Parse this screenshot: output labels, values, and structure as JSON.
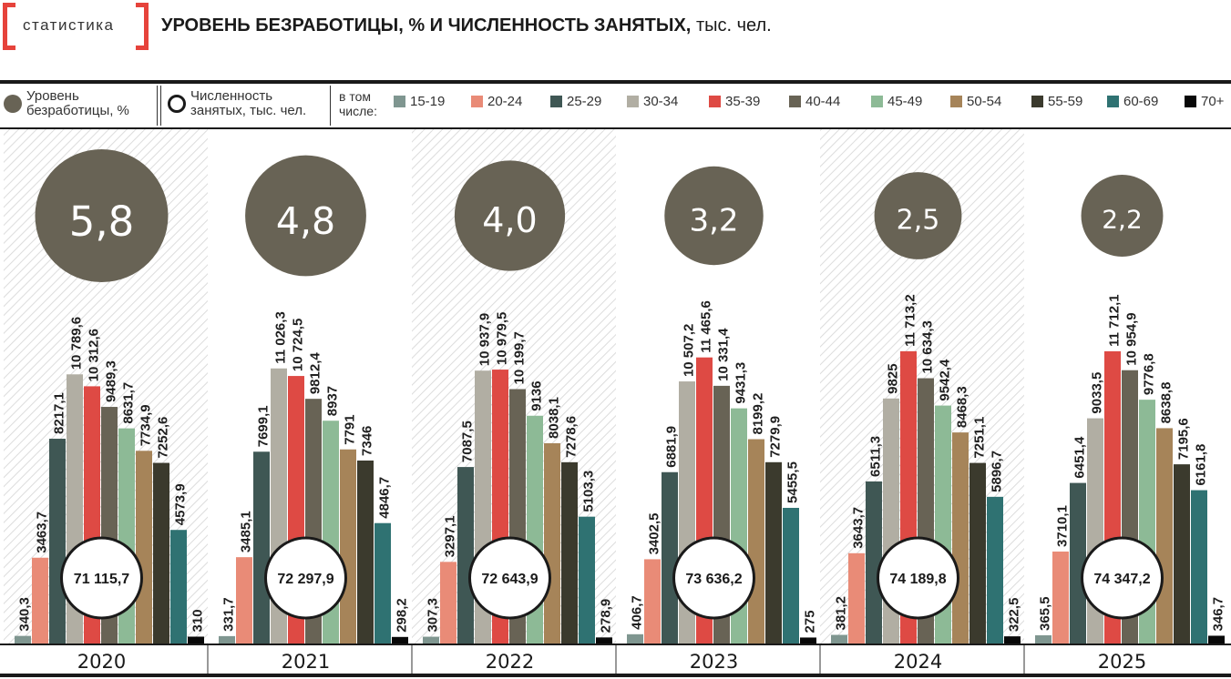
{
  "header": {
    "brand": "статистика",
    "title_bold": "УРОВЕНЬ БЕЗРАБОТИЦЫ, % И ЧИСЛЕННОСТЬ ЗАНЯТЫХ,",
    "title_regular": "тыс. чел."
  },
  "legend": {
    "unemployment_l1": "Уровень",
    "unemployment_l2": "безработицы, %",
    "employed_l1": "Численность",
    "employed_l2": "занятых, тыс. чел.",
    "including_l1": "в том",
    "including_l2": "числе:",
    "groups": [
      "15-19",
      "20-24",
      "25-29",
      "30-34",
      "35-39",
      "40-44",
      "45-49",
      "50-54",
      "55-59",
      "60-69",
      "70+"
    ]
  },
  "colors": {
    "unemployment_circle": "#686355",
    "bars": [
      "#7f9690",
      "#e98b77",
      "#3f5754",
      "#b1aea3",
      "#de4a44",
      "#686355",
      "#8dba96",
      "#a68459",
      "#3b3a2d",
      "#2f7272",
      "#080808"
    ]
  },
  "chart_data": {
    "type": "bar",
    "title": "УРОВЕНЬ БЕЗРАБОТИЦЫ, % И ЧИСЛЕННОСТЬ ЗАНЯТЫХ, тыс. чел.",
    "categories": [
      "2020",
      "2021",
      "2022",
      "2023",
      "2024",
      "2025"
    ],
    "series_names": [
      "15-19",
      "20-24",
      "25-29",
      "30-34",
      "35-39",
      "40-44",
      "45-49",
      "50-54",
      "55-59",
      "60-69",
      "70+"
    ],
    "values": [
      [
        340.3,
        3463.7,
        8217.1,
        10789.6,
        10312.6,
        9489.3,
        8631.7,
        7734.9,
        7252.6,
        4573.9,
        310
      ],
      [
        331.7,
        3485.1,
        7699.1,
        11026.3,
        10724.5,
        9812.4,
        8937,
        7791,
        7346,
        4846.7,
        298.2
      ],
      [
        307.3,
        3297.1,
        7087.5,
        10937.9,
        10979.5,
        10199.7,
        9136,
        8038.1,
        7278.6,
        5103.3,
        278.9
      ],
      [
        406.7,
        3402.5,
        6881.9,
        10507.2,
        11465.6,
        10331.4,
        9431.3,
        8199.2,
        7279.9,
        5455.5,
        275
      ],
      [
        381.2,
        3643.7,
        6511.3,
        9825,
        11713.2,
        10634.3,
        9542.4,
        8468.3,
        7251.1,
        5896.7,
        322.5
      ],
      [
        365.5,
        3710.1,
        6451.4,
        9033.5,
        11712.1,
        10954.9,
        9776.8,
        8638.8,
        7195.6,
        6161.8,
        346.7
      ]
    ],
    "value_labels": [
      [
        "340,3",
        "3463,7",
        "8217,1",
        "10 789,6",
        "10 312,6",
        "9489,3",
        "8631,7",
        "7734,9",
        "7252,6",
        "4573,9",
        "310"
      ],
      [
        "331,7",
        "3485,1",
        "7699,1",
        "11 026,3",
        "10 724,5",
        "9812,4",
        "8937",
        "7791",
        "7346",
        "4846,7",
        "298,2"
      ],
      [
        "307,3",
        "3297,1",
        "7087,5",
        "10 937,9",
        "10 979,5",
        "10 199,7",
        "9136",
        "8038,1",
        "7278,6",
        "5103,3",
        "278,9"
      ],
      [
        "406,7",
        "3402,5",
        "6881,9",
        "10 507,2",
        "11 465,6",
        "10 331,4",
        "9431,3",
        "8199,2",
        "7279,9",
        "5455,5",
        "275"
      ],
      [
        "381,2",
        "3643,7",
        "6511,3",
        "9825",
        "11 713,2",
        "10 634,3",
        "9542,4",
        "8468,3",
        "7251,1",
        "5896,7",
        "322,5"
      ],
      [
        "365,5",
        "3710,1",
        "6451,4",
        "9033,5",
        "11 712,1",
        "10 954,9",
        "9776,8",
        "8638,8",
        "7195,6",
        "6161,8",
        "346,7"
      ]
    ],
    "unemployment_rate": [
      5.8,
      4.8,
      4.0,
      3.2,
      2.5,
      2.2
    ],
    "unemployment_labels": [
      "5,8",
      "4,8",
      "4,0",
      "3,2",
      "2,5",
      "2,2"
    ],
    "employed_total": [
      71115.7,
      72297.9,
      72643.9,
      73636.2,
      74189.8,
      74347.2
    ],
    "employed_labels": [
      "71 115,7",
      "72 297,9",
      "72 643,9",
      "73 636,2",
      "74 189,8",
      "74 347,2"
    ],
    "ylim": [
      0,
      12000
    ],
    "legend_position": "top"
  }
}
